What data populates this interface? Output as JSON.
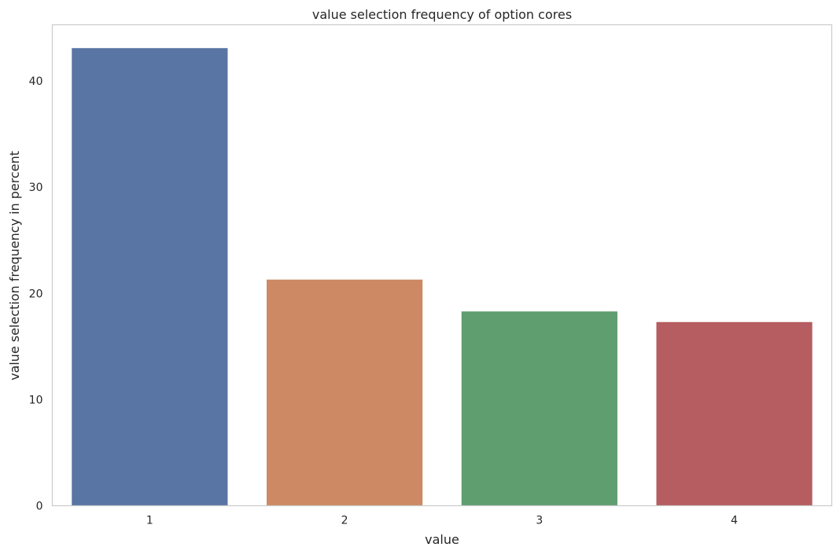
{
  "chart_data": {
    "type": "bar",
    "title": "value selection frequency of option cores",
    "xlabel": "value",
    "ylabel": "value selection frequency in percent",
    "categories": [
      "1",
      "2",
      "3",
      "4"
    ],
    "values": [
      43.1,
      21.3,
      18.3,
      17.3
    ],
    "colors": [
      "#5875a4",
      "#cc8963",
      "#5f9e6e",
      "#b55d60"
    ],
    "yticks": [
      "0",
      "10",
      "20",
      "30",
      "40"
    ],
    "ylim": [
      0,
      45.3
    ],
    "grid": false,
    "legend": "none"
  }
}
